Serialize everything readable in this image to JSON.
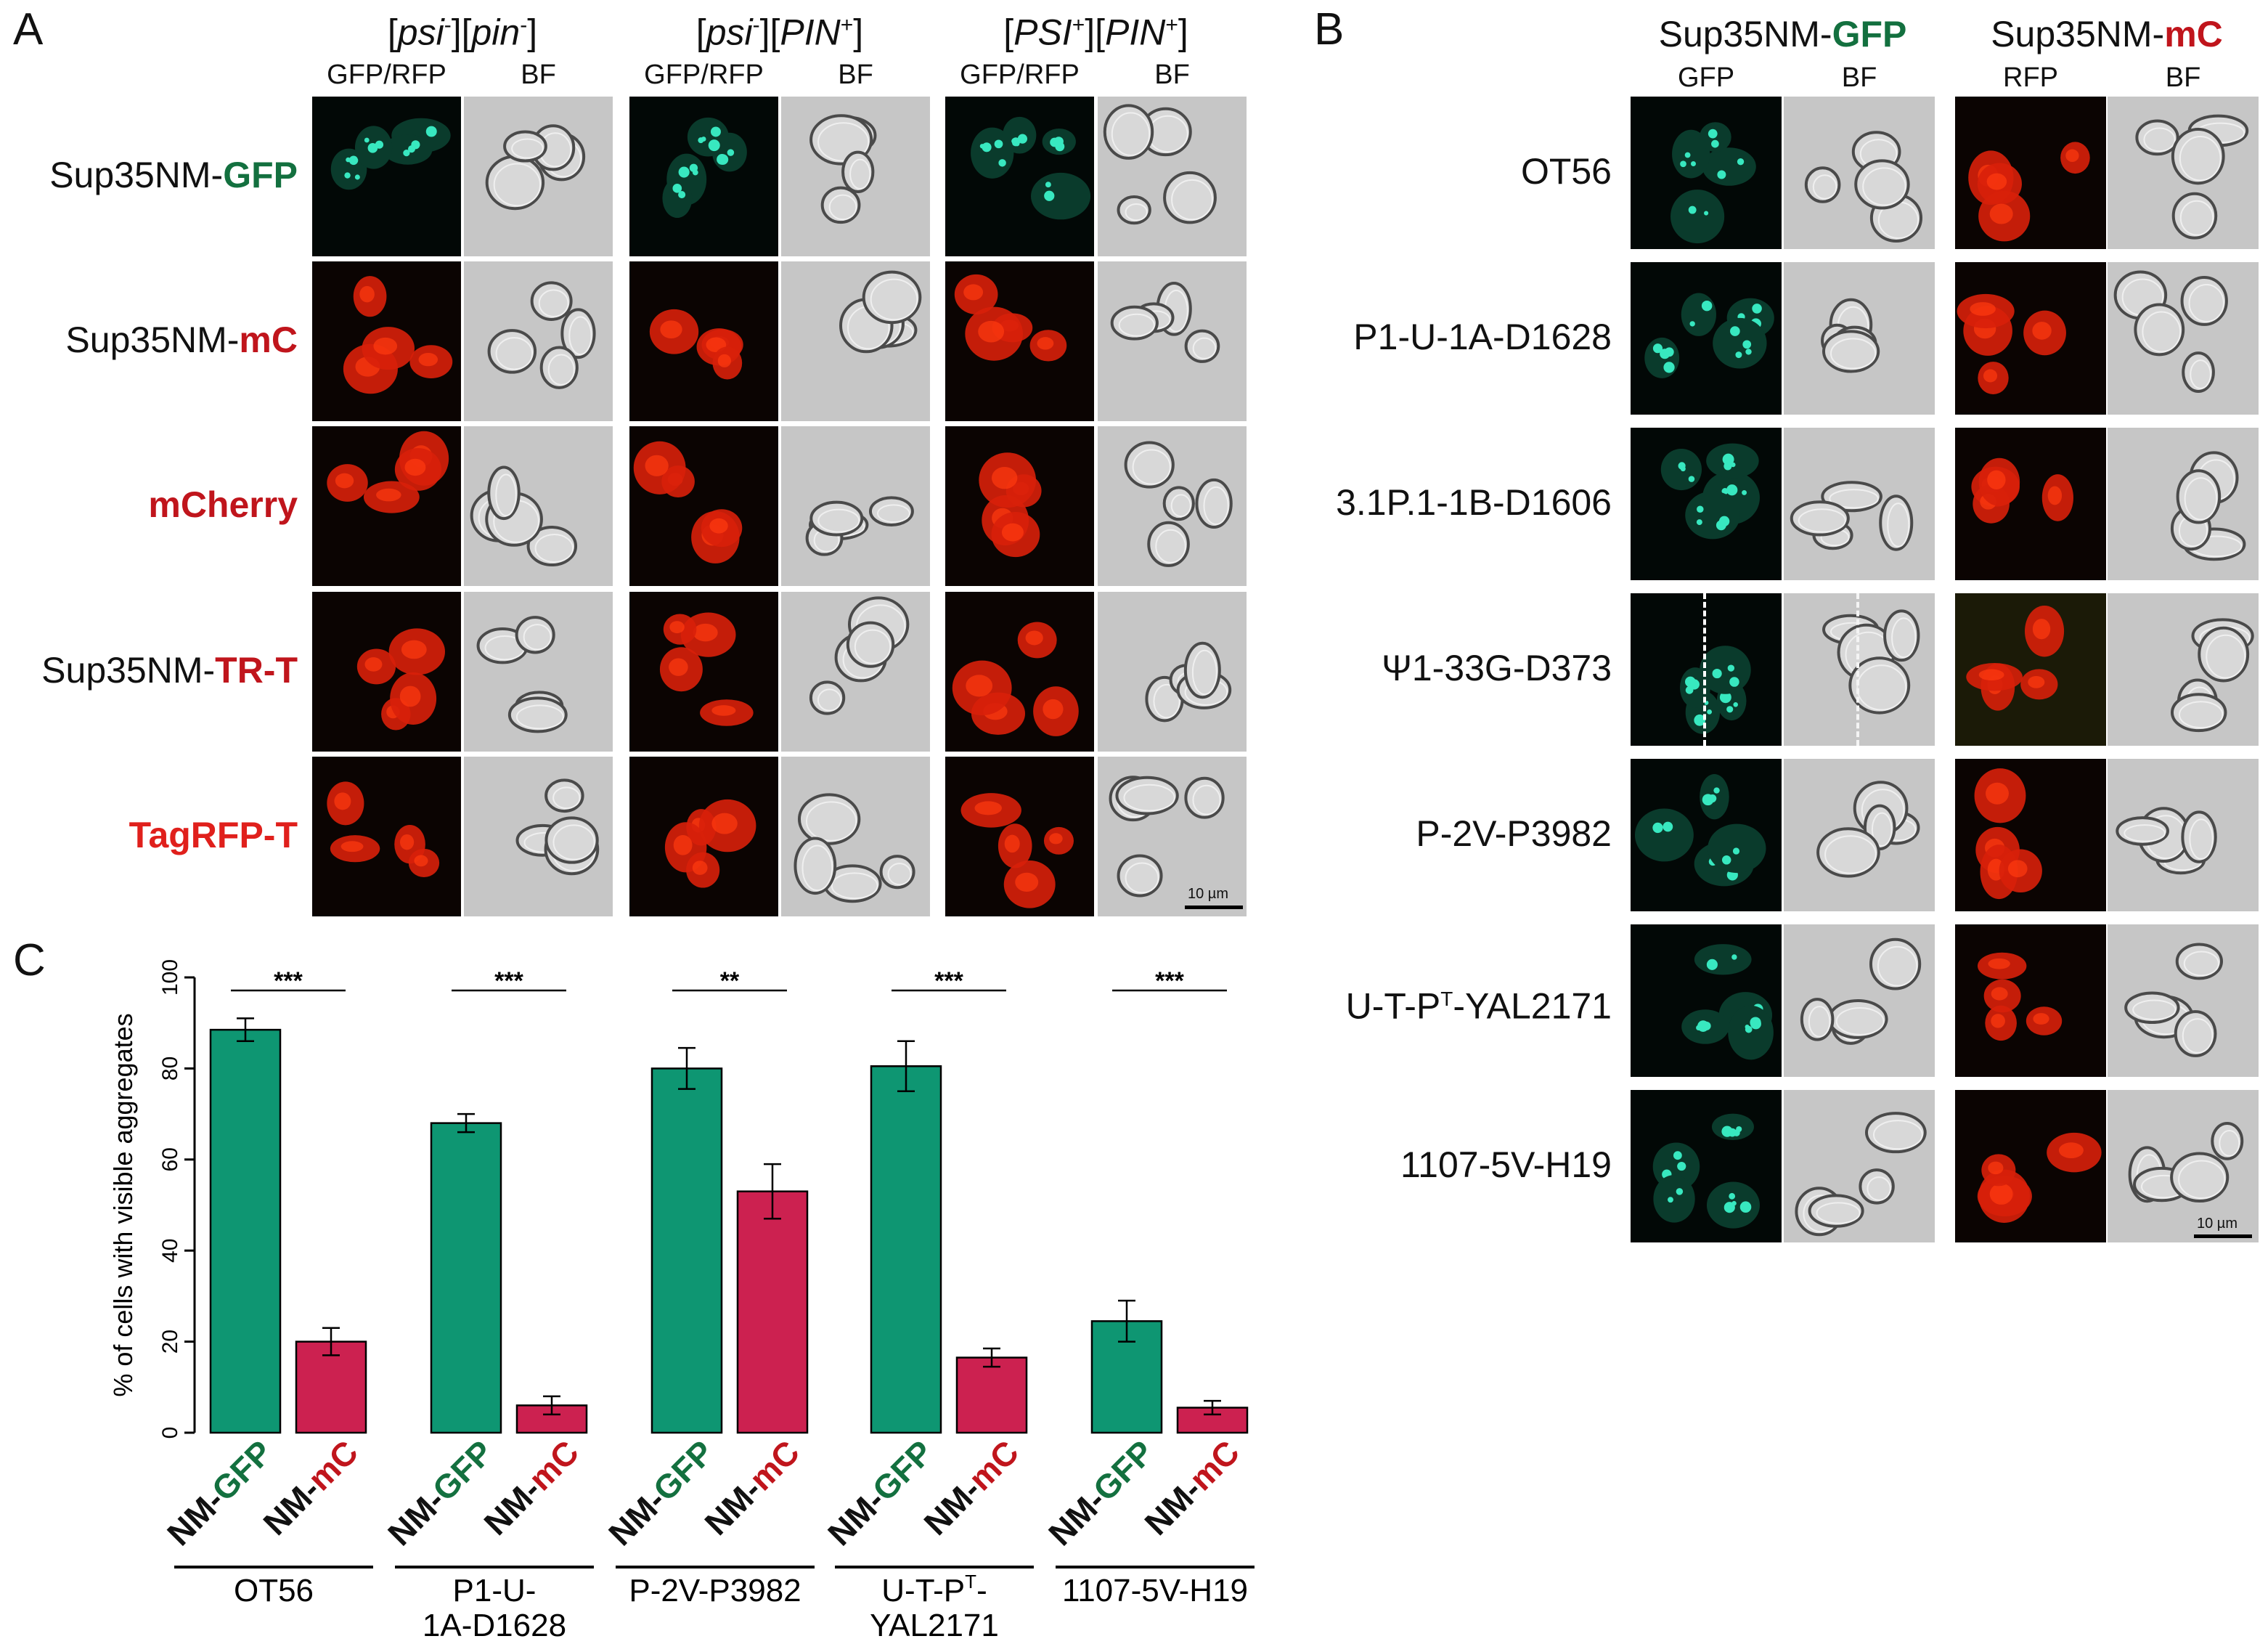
{
  "panelA": {
    "letter": "A",
    "strains": [
      {
        "pre": "[",
        "a": "psi",
        "a_sup": "-",
        "mid": "][",
        "b": "pin",
        "b_sup": "-",
        "post": "]"
      },
      {
        "pre": "[",
        "a": "psi",
        "a_sup": "-",
        "mid": "][",
        "b": "PIN",
        "b_sup": "+",
        "post": "]"
      },
      {
        "pre": "[",
        "a": "PSI",
        "a_sup": "+",
        "mid": "][",
        "b": "PIN",
        "b_sup": "+",
        "post": "]"
      }
    ],
    "subcols": [
      "GFP/RFP",
      "BF"
    ],
    "rows": [
      {
        "prefix": "Sup35NM-",
        "tag": "GFP",
        "color": "#13703f"
      },
      {
        "prefix": "Sup35NM-",
        "tag": "mC",
        "color": "#c0151c"
      },
      {
        "prefix": "",
        "tag": "mCherry",
        "color": "#c0151c"
      },
      {
        "prefix": "Sup35NM-",
        "tag": "TR-T",
        "color": "#c0151c"
      },
      {
        "prefix": "",
        "tag": "TagRFP-T",
        "color": "#e0201c"
      }
    ],
    "scale_bar": "10 µm"
  },
  "panelB": {
    "letter": "B",
    "groups": [
      {
        "prefix": "Sup35NM-",
        "tag": "GFP",
        "color": "#13703f",
        "subcols": [
          "GFP",
          "BF"
        ]
      },
      {
        "prefix": "Sup35NM-",
        "tag": "mC",
        "color": "#c0151c",
        "subcols": [
          "RFP",
          "BF"
        ]
      }
    ],
    "rows": [
      {
        "pre": "OT56",
        "sup": "",
        "post": ""
      },
      {
        "pre": "P1-U-1A-D1628",
        "sup": "",
        "post": ""
      },
      {
        "pre": "3.1P.1-1B-D1606",
        "sup": "",
        "post": ""
      },
      {
        "pre": "Ψ1-33G-D373",
        "sup": "",
        "post": ""
      },
      {
        "pre": "P-2V-P3982",
        "sup": "",
        "post": ""
      },
      {
        "pre": "U-T-P",
        "sup": "T",
        "post": "-YAL2171"
      },
      {
        "pre": "1107-5V-H19",
        "sup": "",
        "post": ""
      }
    ],
    "scale_bar": "10 µm"
  },
  "panelC": {
    "letter": "C",
    "chart_data": {
      "type": "bar",
      "ylabel": "% of cells with visible aggregates",
      "ylim": [
        0,
        100
      ],
      "yticks": [
        0,
        20,
        40,
        60,
        80,
        100
      ],
      "bar_labels": [
        {
          "prefix": "NM-",
          "tag": "GFP",
          "color": "#13703f"
        },
        {
          "prefix": "NM-",
          "tag": "mC",
          "color": "#c0151c"
        }
      ],
      "series": [
        {
          "color": "#0e9672",
          "values": [
            88.5,
            68,
            80,
            80.5,
            24.5
          ],
          "errors": [
            2.5,
            2,
            4.5,
            5.5,
            4.5
          ]
        },
        {
          "color": "#cc2150",
          "values": [
            20,
            6,
            53,
            16.5,
            5.5
          ],
          "errors": [
            3,
            2,
            6,
            2,
            1.5
          ]
        }
      ],
      "categories": [
        {
          "lines": [
            "OT56"
          ]
        },
        {
          "lines": [
            "P1-U-",
            "1A-D1628"
          ]
        },
        {
          "lines": [
            "P-2V-P3982"
          ]
        },
        {
          "lines": [
            "U-T-P|T|-",
            "YAL2171"
          ]
        },
        {
          "lines": [
            "1107-5V-H19"
          ]
        }
      ],
      "significance": [
        "***",
        "***",
        "**",
        "***",
        "***"
      ]
    }
  }
}
